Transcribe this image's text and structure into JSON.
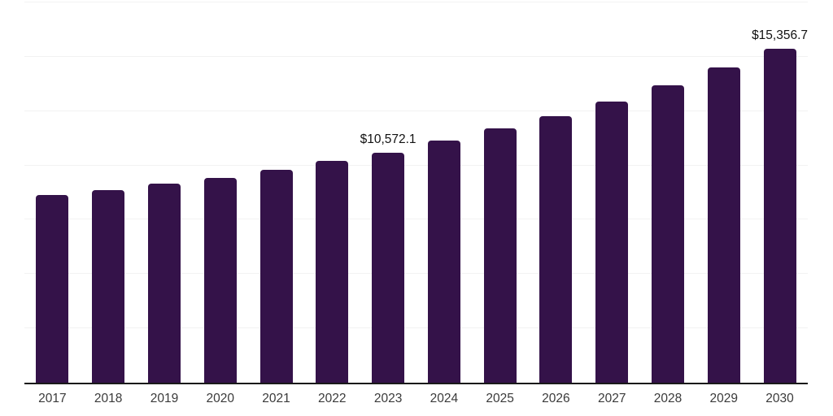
{
  "chart_data": {
    "type": "bar",
    "title": "",
    "xlabel": "",
    "ylabel": "",
    "categories": [
      "2017",
      "2018",
      "2019",
      "2020",
      "2021",
      "2022",
      "2023",
      "2024",
      "2025",
      "2026",
      "2027",
      "2028",
      "2029",
      "2030"
    ],
    "values": [
      8620,
      8880,
      9180,
      9440,
      9810,
      10220,
      10572.1,
      11150,
      11720,
      12270,
      12950,
      13690,
      14510,
      15356.7
    ],
    "labels": [
      "",
      "",
      "",
      "",
      "",
      "",
      "$10,572.1",
      "",
      "",
      "",
      "",
      "",
      "",
      "$15,356.7"
    ],
    "ylim": [
      0,
      17500
    ],
    "gridline_step": 2500,
    "grid": "horizontal-only",
    "legend": "none",
    "colors": {
      "bar": "#341249",
      "axis_line": "#1a1a1a",
      "gridline": "#f2f2f2",
      "data_label": "#111111",
      "tick_label": "#3a3a3a",
      "background": "#ffffff"
    }
  }
}
